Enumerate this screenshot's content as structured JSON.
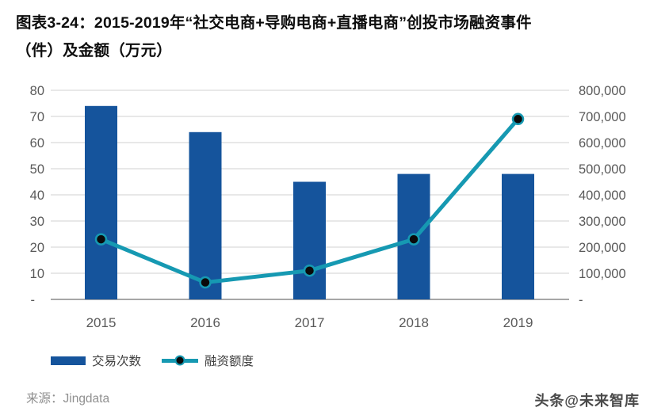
{
  "title": {
    "line1": "图表3-24：2015-2019年“社交电商+导购电商+直播电商”创投市场融资事件",
    "line2": "（件）及金额（万元）"
  },
  "chart_data": {
    "type": "combo-bar-line",
    "categories": [
      "2015",
      "2016",
      "2017",
      "2018",
      "2019"
    ],
    "series": [
      {
        "name": "交易次数",
        "type": "bar",
        "axis": "left",
        "values": [
          74,
          64,
          45,
          48,
          48
        ],
        "color": "#15549C"
      },
      {
        "name": "融资额度",
        "type": "line",
        "axis": "right",
        "values": [
          230000,
          65000,
          110000,
          230000,
          690000
        ],
        "color": "#1699B2",
        "marker_color": "#0A0A0A"
      }
    ],
    "left_axis": {
      "min": 0,
      "max": 80,
      "step": 10,
      "zero_label": "-"
    },
    "right_axis": {
      "min": 0,
      "max": 800000,
      "step": 100000,
      "zero_label": "-"
    },
    "grid": true,
    "gridline_color": "#D9D9D9",
    "axisline_color": "#A6A6A6",
    "tick_color": "#595959",
    "legend_position": "bottom"
  },
  "legend": {
    "items": [
      {
        "label": "交易次数",
        "swatch": "bar",
        "color": "#15549C"
      },
      {
        "label": "融资额度",
        "swatch": "line",
        "color": "#1699B2",
        "marker_color": "#0A0A0A"
      }
    ]
  },
  "footer": {
    "source": "来源：Jingdata",
    "watermark": "头条@未来智库"
  }
}
